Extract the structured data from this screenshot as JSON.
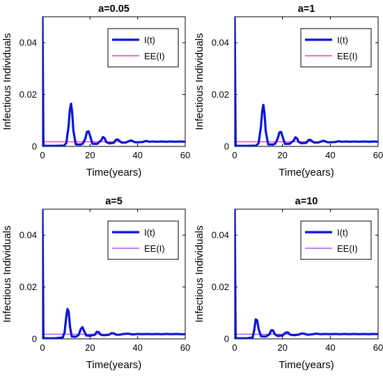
{
  "chart_data": [
    {
      "type": "line",
      "title": "a=0.05",
      "xlabel": "Time(years)",
      "ylabel": "Infectious Individuals",
      "xlim": [
        0,
        60
      ],
      "ylim": [
        0,
        0.05
      ],
      "xticks": [
        "0",
        "20",
        "40",
        "60"
      ],
      "yticks": [
        "0",
        "0.02",
        "0.04"
      ],
      "legend_position": "top-right",
      "series": [
        {
          "name": "I(t)",
          "color": "#0a14d8",
          "style": "thick-solid",
          "x": [
            0,
            0.4,
            1,
            2,
            5,
            9,
            10,
            11,
            11.5,
            12,
            12.5,
            13,
            14,
            16,
            17,
            18,
            18.7,
            19.4,
            20.2,
            21,
            23,
            24.7,
            25.4,
            26.1,
            26.8,
            28,
            30,
            30.8,
            31.6,
            32.4,
            33.2,
            35,
            36.5,
            37.3,
            38,
            39,
            40,
            42,
            43.5,
            45,
            46.5,
            48,
            50,
            52,
            54,
            56,
            58,
            60
          ],
          "y": [
            0.05,
            0.0005,
            0.0002,
            0.0002,
            0.0002,
            0.0003,
            0.0012,
            0.008,
            0.014,
            0.0165,
            0.013,
            0.006,
            0.0008,
            0.0007,
            0.0011,
            0.003,
            0.0056,
            0.0058,
            0.0035,
            0.001,
            0.001,
            0.0024,
            0.0036,
            0.0032,
            0.0017,
            0.0012,
            0.0014,
            0.0025,
            0.0027,
            0.0021,
            0.0015,
            0.0015,
            0.0021,
            0.0023,
            0.002,
            0.0016,
            0.0016,
            0.0017,
            0.0021,
            0.0018,
            0.0019,
            0.0018,
            0.0019,
            0.0018,
            0.0019,
            0.0018,
            0.0019,
            0.0018
          ]
        },
        {
          "name": "EE(I)",
          "color": "#e0208f",
          "style": "thin-solid",
          "x": [
            0,
            60
          ],
          "y": [
            0.0018,
            0.0018
          ]
        }
      ]
    },
    {
      "type": "line",
      "title": "a=1",
      "xlabel": "Time(years)",
      "ylabel": "Infectious Individuals",
      "xlim": [
        0,
        60
      ],
      "ylim": [
        0,
        0.05
      ],
      "xticks": [
        "0",
        "20",
        "40",
        "60"
      ],
      "yticks": [
        "0",
        "0.02",
        "0.04"
      ],
      "legend_position": "top-right",
      "series": [
        {
          "name": "I(t)",
          "color": "#0a14d8",
          "style": "thick-solid",
          "x": [
            0,
            0.4,
            1,
            2,
            5,
            9,
            10,
            11,
            11.5,
            12,
            12.5,
            13,
            14,
            16,
            17,
            18,
            18.7,
            19.4,
            20.2,
            21,
            23,
            24.7,
            25.4,
            26.1,
            26.8,
            28,
            30,
            30.8,
            31.6,
            32.4,
            33.2,
            35,
            36.5,
            37.3,
            38,
            39,
            40,
            42,
            43.5,
            45,
            46.5,
            48,
            50,
            52,
            54,
            56,
            58,
            60
          ],
          "y": [
            0.05,
            0.0005,
            0.0002,
            0.0002,
            0.0002,
            0.0003,
            0.0012,
            0.0078,
            0.0135,
            0.016,
            0.0125,
            0.0058,
            0.0008,
            0.0007,
            0.0011,
            0.003,
            0.0054,
            0.0056,
            0.0034,
            0.001,
            0.001,
            0.0023,
            0.0035,
            0.0031,
            0.0017,
            0.0012,
            0.0014,
            0.0024,
            0.0026,
            0.002,
            0.0015,
            0.0015,
            0.002,
            0.0022,
            0.0019,
            0.0016,
            0.0016,
            0.0017,
            0.002,
            0.0018,
            0.0019,
            0.0018,
            0.0019,
            0.0018,
            0.0019,
            0.0018,
            0.0019,
            0.0018
          ]
        },
        {
          "name": "EE(I)",
          "color": "#e0208f",
          "style": "thin-solid",
          "x": [
            0,
            60
          ],
          "y": [
            0.0018,
            0.0018
          ]
        }
      ]
    },
    {
      "type": "line",
      "title": "a=5",
      "xlabel": "Time(years)",
      "ylabel": "Infectious Individuals",
      "xlim": [
        0,
        60
      ],
      "ylim": [
        0,
        0.05
      ],
      "xticks": [
        "0",
        "20",
        "40",
        "60"
      ],
      "yticks": [
        "0",
        "0.02",
        "0.04"
      ],
      "legend_position": "top-right",
      "series": [
        {
          "name": "I(t)",
          "color": "#0a14d8",
          "style": "thick-solid",
          "x": [
            0,
            0.4,
            1,
            2,
            5,
            8.5,
            9.3,
            10,
            10.5,
            11,
            11.6,
            12.3,
            14,
            15.2,
            16.1,
            16.8,
            17.5,
            18.4,
            20,
            22,
            22.8,
            23.6,
            24.5,
            26,
            28,
            29,
            30,
            31,
            32.5,
            34,
            36,
            38,
            40,
            42,
            44,
            46,
            48,
            50,
            52,
            54,
            56,
            58,
            60
          ],
          "y": [
            0.05,
            0.0005,
            0.0002,
            0.0002,
            0.0002,
            0.0005,
            0.0025,
            0.0085,
            0.0115,
            0.0105,
            0.0045,
            0.0009,
            0.0008,
            0.0015,
            0.0038,
            0.0045,
            0.003,
            0.0013,
            0.0012,
            0.0016,
            0.0027,
            0.0026,
            0.0016,
            0.0014,
            0.0016,
            0.0022,
            0.0021,
            0.0016,
            0.0016,
            0.0019,
            0.002,
            0.0017,
            0.0019,
            0.0018,
            0.0019,
            0.0018,
            0.0019,
            0.0018,
            0.0019,
            0.0018,
            0.0019,
            0.0018,
            0.0018
          ]
        },
        {
          "name": "EE(I)",
          "color": "#9b30ff",
          "style": "thin-solid",
          "x": [
            0,
            60
          ],
          "y": [
            0.0018,
            0.0018
          ]
        }
      ]
    },
    {
      "type": "line",
      "title": "a=10",
      "xlabel": "Time(years)",
      "ylabel": "Infectious Individuals",
      "xlim": [
        0,
        60
      ],
      "ylim": [
        0,
        0.05
      ],
      "xticks": [
        "0",
        "20",
        "40",
        "60"
      ],
      "yticks": [
        "0",
        "0.02",
        "0.04"
      ],
      "legend_position": "top-right",
      "series": [
        {
          "name": "I(t)",
          "color": "#0a14d8",
          "style": "thick-solid",
          "x": [
            0,
            0.4,
            1,
            2,
            5,
            7.5,
            8.2,
            8.8,
            9.4,
            10.1,
            11,
            13,
            14.5,
            15.3,
            16,
            16.8,
            18,
            20,
            21.3,
            22.2,
            23.2,
            25,
            27,
            28,
            29,
            30.5,
            32,
            34,
            36,
            38,
            40,
            42,
            44,
            46,
            48,
            50,
            52,
            54,
            56,
            58,
            60
          ],
          "y": [
            0.05,
            0.0005,
            0.0002,
            0.0002,
            0.0002,
            0.0005,
            0.0035,
            0.0075,
            0.0072,
            0.0035,
            0.001,
            0.0009,
            0.0017,
            0.0033,
            0.0033,
            0.0018,
            0.0011,
            0.0013,
            0.0024,
            0.0025,
            0.0016,
            0.0014,
            0.0017,
            0.0021,
            0.002,
            0.0016,
            0.0017,
            0.002,
            0.0018,
            0.0019,
            0.0018,
            0.0019,
            0.0018,
            0.0019,
            0.0018,
            0.0019,
            0.0018,
            0.0019,
            0.0018,
            0.0019,
            0.0018
          ]
        },
        {
          "name": "EE(I)",
          "color": "#9b30ff",
          "style": "thin-solid",
          "x": [
            0,
            60
          ],
          "y": [
            0.0018,
            0.0018
          ]
        }
      ]
    }
  ]
}
